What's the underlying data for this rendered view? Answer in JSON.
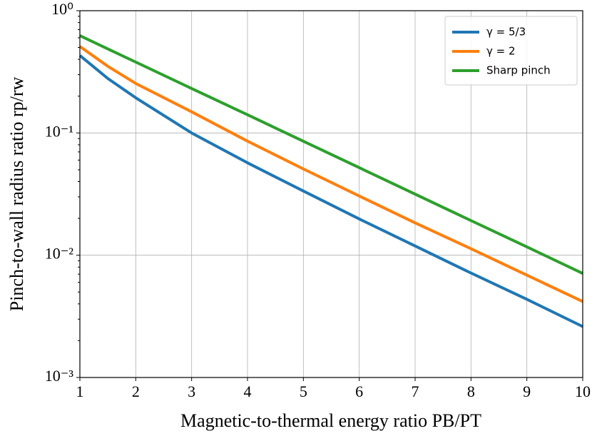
{
  "chart_data": {
    "type": "line",
    "xlabel": "Magnetic-to-thermal energy ratio PB/PT",
    "ylabel": "Pinch-to-wall radius ratio rp/rw",
    "x": [
      1,
      1.5,
      2,
      3,
      4,
      5,
      6,
      7,
      8,
      9,
      10
    ],
    "series": [
      {
        "name": "γ = 5/3",
        "color": "#1f77b4",
        "values": [
          0.43,
          0.279,
          0.194,
          0.1,
          0.057,
          0.0335,
          0.0198,
          0.0119,
          0.00715,
          0.00436,
          0.00261
        ]
      },
      {
        "name": "γ = 2",
        "color": "#ff7f0e",
        "values": [
          0.51,
          0.351,
          0.254,
          0.149,
          0.0857,
          0.0508,
          0.0305,
          0.0184,
          0.0113,
          0.00687,
          0.00418
        ]
      },
      {
        "name": "Sharp pinch",
        "color": "#2ca02c",
        "values": [
          0.625,
          0.487,
          0.38,
          0.231,
          0.141,
          0.0855,
          0.052,
          0.0316,
          0.0192,
          0.0117,
          0.0071
        ]
      }
    ],
    "xlim": [
      1,
      10
    ],
    "xticks": [
      1,
      2,
      3,
      4,
      5,
      6,
      7,
      8,
      9,
      10
    ],
    "ylim": [
      0.001,
      1
    ],
    "ylog": true,
    "yticks": [
      {
        "value": 0.001,
        "label": "10⁻³"
      },
      {
        "value": 0.01,
        "label": "10⁻²"
      },
      {
        "value": 0.1,
        "label": "10⁻¹"
      },
      {
        "value": 1,
        "label": "10⁰"
      }
    ],
    "grid": true,
    "legend": "upper right"
  }
}
